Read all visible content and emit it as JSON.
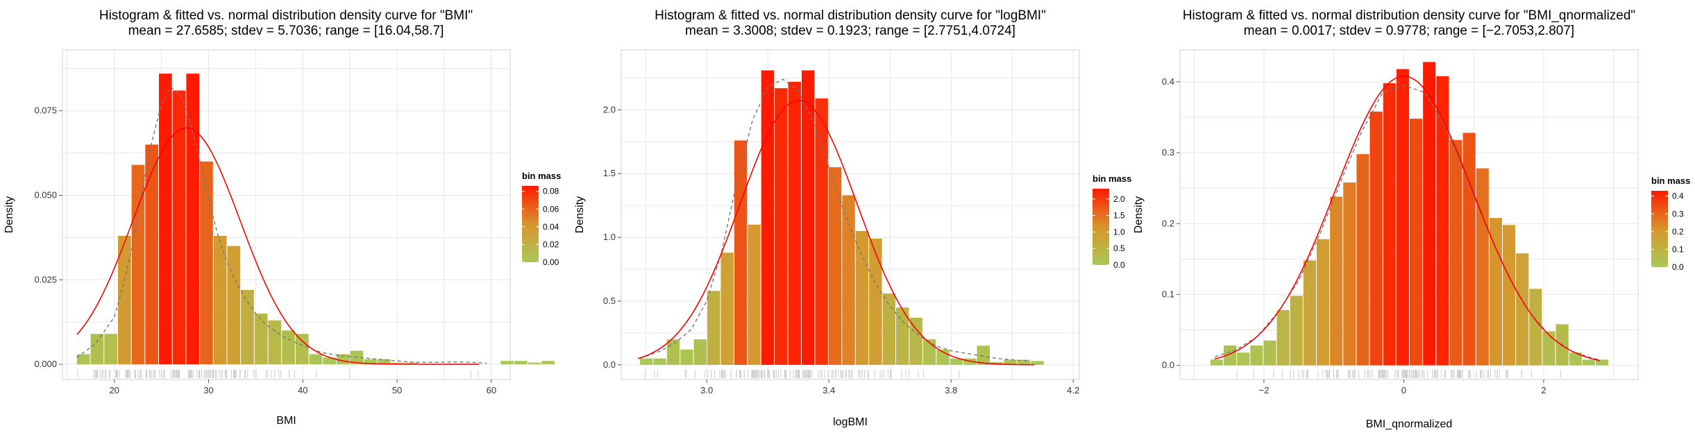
{
  "chart_data": [
    {
      "type": "bar",
      "title": "Histogram & fitted vs. normal distribution density curve for \"BMI\"",
      "subtitle": "mean = 27.6585; stdev = 5.7036; range = [16.04,58.7]",
      "xlabel": "BMI",
      "ylabel": "Density",
      "xlim": [
        14.5,
        62
      ],
      "ylim": [
        -0.0045,
        0.093
      ],
      "xticks": [
        20,
        30,
        40,
        50,
        60
      ],
      "xtick_labels": [
        "20",
        "30",
        "40",
        "50",
        "60"
      ],
      "yticks": [
        0.0,
        0.025,
        0.05,
        0.075
      ],
      "ytick_labels": [
        "0.000",
        "0.025",
        "0.050",
        "0.075"
      ],
      "grid": true,
      "bins": {
        "start": 16.0,
        "width": 1.45,
        "values": [
          0.003,
          0.009,
          0.009,
          0.038,
          0.059,
          0.065,
          0.086,
          0.081,
          0.086,
          0.06,
          0.038,
          0.035,
          0.022,
          0.015,
          0.013,
          0.01,
          0.009,
          0.003,
          0.002,
          0.003,
          0.004,
          0.0015,
          0.0015,
          0.0005,
          0.0005,
          0.0,
          0.0,
          0.0,
          0.0,
          0.0,
          0.0,
          0.001,
          0.001,
          0.0005,
          0.001,
          0.0,
          0.0
        ]
      },
      "normal_curve": {
        "mean": 27.6585,
        "sd": 5.7036,
        "x_from": 16.04,
        "x_to": 58.7
      },
      "density_curve": {
        "x": [
          16,
          18,
          20,
          21,
          22,
          23,
          24,
          25,
          26,
          27,
          28,
          29,
          30,
          31,
          32,
          33,
          34,
          35,
          36,
          38,
          40,
          42,
          44,
          46,
          48,
          50,
          52,
          54,
          56,
          58,
          59.5
        ],
        "y": [
          0.002,
          0.006,
          0.014,
          0.024,
          0.036,
          0.052,
          0.066,
          0.077,
          0.082,
          0.08,
          0.072,
          0.061,
          0.049,
          0.038,
          0.03,
          0.024,
          0.019,
          0.015,
          0.012,
          0.008,
          0.0055,
          0.0035,
          0.0025,
          0.002,
          0.0015,
          0.001,
          0.0006,
          0.0006,
          0.0007,
          0.0006,
          0.0003
        ]
      },
      "rug_range": [
        16.0,
        59.0
      ],
      "legend": {
        "title": "bin mass",
        "position": "right",
        "min": 0.0,
        "max": 0.086,
        "ticks": [
          0.0,
          0.02,
          0.04,
          0.06,
          0.08
        ],
        "tick_labels": [
          "0.00",
          "0.02",
          "0.04",
          "0.06",
          "0.08"
        ]
      }
    },
    {
      "type": "bar",
      "title": "Histogram & fitted vs. normal distribution density curve for \"logBMI\"",
      "subtitle": "mean = 3.3008; stdev = 0.1923; range = [2.7751,4.0724]",
      "xlabel": "logBMI",
      "ylabel": "Density",
      "xlim": [
        2.72,
        4.22
      ],
      "ylim": [
        -0.115,
        2.47
      ],
      "xticks": [
        3.0,
        3.4,
        3.8,
        4.2
      ],
      "xtick_labels": [
        "3.0",
        "3.4",
        "3.8",
        "4.2"
      ],
      "yticks": [
        0.0,
        0.5,
        1.0,
        1.5,
        2.0
      ],
      "ytick_labels": [
        "0.0",
        "0.5",
        "1.0",
        "1.5",
        "2.0"
      ],
      "grid": true,
      "bins": {
        "start": 2.78,
        "width": 0.04415,
        "values": [
          0.05,
          0.05,
          0.2,
          0.12,
          0.2,
          0.58,
          0.88,
          1.76,
          1.1,
          2.31,
          2.17,
          2.22,
          2.31,
          2.09,
          1.55,
          1.33,
          1.05,
          0.99,
          0.56,
          0.45,
          0.37,
          0.2,
          0.12,
          0.05,
          0.05,
          0.15,
          0.02,
          0.04,
          0.04,
          0.03
        ]
      },
      "normal_curve": {
        "mean": 3.3008,
        "sd": 0.1923,
        "x_from": 2.7751,
        "x_to": 4.0724
      },
      "density_curve": {
        "x": [
          2.78,
          2.85,
          2.9,
          2.95,
          3.0,
          3.05,
          3.1,
          3.15,
          3.2,
          3.25,
          3.3,
          3.35,
          3.4,
          3.45,
          3.5,
          3.55,
          3.6,
          3.65,
          3.7,
          3.75,
          3.8,
          3.85,
          3.9,
          3.95,
          4.0,
          4.05
        ],
        "y": [
          0.05,
          0.11,
          0.18,
          0.28,
          0.5,
          0.9,
          1.45,
          1.92,
          2.18,
          2.24,
          2.15,
          1.9,
          1.55,
          1.2,
          0.9,
          0.65,
          0.46,
          0.32,
          0.22,
          0.15,
          0.11,
          0.09,
          0.07,
          0.05,
          0.04,
          0.03
        ]
      },
      "rug_range": [
        2.78,
        4.07
      ],
      "legend": {
        "title": "bin mass",
        "position": "right",
        "min": 0.0,
        "max": 2.31,
        "ticks": [
          0.0,
          0.5,
          1.0,
          1.5,
          2.0
        ],
        "tick_labels": [
          "0.0",
          "0.5",
          "1.0",
          "1.5",
          "2.0"
        ]
      }
    },
    {
      "type": "bar",
      "title": "Histogram & fitted vs. normal distribution density curve for \"BMI_qnormalized\"",
      "subtitle": "mean = 0.0017; stdev = 0.9778; range = [−2.7053,2.807]",
      "xlabel": "BMI_qnormalized",
      "ylabel": "Density",
      "xlim": [
        -3.2,
        3.35
      ],
      "ylim": [
        -0.02,
        0.445
      ],
      "xticks": [
        -2,
        0,
        2
      ],
      "xtick_labels": [
        "−2",
        "0",
        "2"
      ],
      "yticks": [
        0.0,
        0.1,
        0.2,
        0.3,
        0.4
      ],
      "ytick_labels": [
        "0.0",
        "0.1",
        "0.2",
        "0.3",
        "0.4"
      ],
      "grid": true,
      "bins": {
        "start": -2.77,
        "width": 0.19,
        "values": [
          0.008,
          0.028,
          0.018,
          0.028,
          0.035,
          0.078,
          0.098,
          0.148,
          0.178,
          0.238,
          0.258,
          0.298,
          0.358,
          0.398,
          0.418,
          0.348,
          0.428,
          0.408,
          0.318,
          0.328,
          0.278,
          0.208,
          0.198,
          0.158,
          0.108,
          0.048,
          0.058,
          0.018,
          0.008,
          0.008
        ]
      },
      "normal_curve": {
        "mean": 0.0017,
        "sd": 0.9778,
        "x_from": -2.7053,
        "x_to": 2.807
      },
      "density_curve": {
        "x": [
          -2.7,
          -2.4,
          -2.1,
          -1.8,
          -1.5,
          -1.2,
          -0.9,
          -0.6,
          -0.3,
          0.0,
          0.3,
          0.6,
          0.9,
          1.2,
          1.5,
          1.8,
          2.1,
          2.4,
          2.7,
          2.8
        ],
        "y": [
          0.012,
          0.022,
          0.04,
          0.075,
          0.12,
          0.185,
          0.26,
          0.33,
          0.385,
          0.395,
          0.385,
          0.335,
          0.265,
          0.19,
          0.125,
          0.075,
          0.04,
          0.02,
          0.01,
          0.008
        ]
      },
      "rug_range": [
        -2.7,
        2.8
      ],
      "legend": {
        "title": "bin mass",
        "position": "right",
        "min": 0.0,
        "max": 0.43,
        "ticks": [
          0.0,
          0.1,
          0.2,
          0.3,
          0.4
        ],
        "tick_labels": [
          "0.0",
          "0.1",
          "0.2",
          "0.3",
          "0.4"
        ]
      }
    }
  ],
  "colors": {
    "bin_low": "#a8c957",
    "bin_mid": "#d8952c",
    "bin_high": "#ff1a00",
    "normal_curve": "#ff0000",
    "density_curve": "#777777",
    "panel_background": "#ffffff",
    "grid": "#e6e6e6",
    "rug": "#cccccc"
  }
}
